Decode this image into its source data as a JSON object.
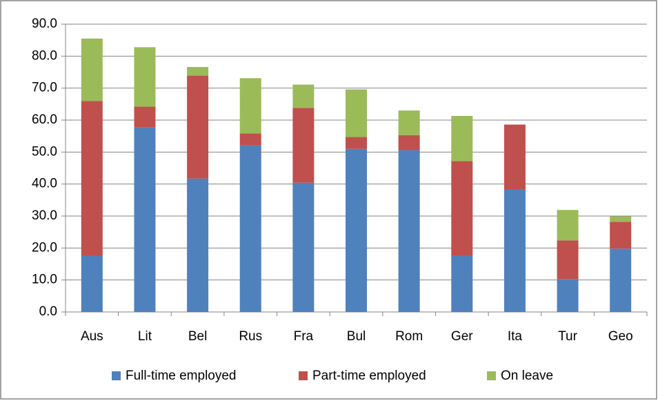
{
  "chart_data": {
    "type": "stacked_bar",
    "categories": [
      "Aus",
      "Lit",
      "Bel",
      "Rus",
      "Fra",
      "Bul",
      "Rom",
      "Ger",
      "Ita",
      "Tur",
      "Geo"
    ],
    "series": [
      {
        "name": "Full-time employed",
        "color": "#4f81bd",
        "values": [
          17.7,
          57.7,
          41.7,
          52.1,
          40.4,
          51.0,
          50.6,
          17.7,
          38.3,
          10.3,
          19.8
        ]
      },
      {
        "name": "Part-time employed",
        "color": "#c0504d",
        "values": [
          48.3,
          6.5,
          32.2,
          3.7,
          23.4,
          3.7,
          4.7,
          29.5,
          20.3,
          12.1,
          8.4
        ]
      },
      {
        "name": "On leave",
        "color": "#9bbb59",
        "values": [
          19.5,
          18.6,
          2.7,
          17.3,
          7.3,
          14.9,
          7.7,
          14.1,
          0,
          9.5,
          1.7
        ]
      }
    ],
    "ylim": [
      0,
      90
    ],
    "yticks": [
      {
        "value": 0,
        "label": "0.0"
      },
      {
        "value": 10,
        "label": "10.0"
      },
      {
        "value": 20,
        "label": "20.0"
      },
      {
        "value": 30,
        "label": "30.0"
      },
      {
        "value": 40,
        "label": "40.0"
      },
      {
        "value": 50,
        "label": "50.0"
      },
      {
        "value": 60,
        "label": "60.0"
      },
      {
        "value": 70,
        "label": "70.0"
      },
      {
        "value": 80,
        "label": "80.0"
      },
      {
        "value": 90,
        "label": "90.0"
      }
    ],
    "grid": true,
    "legend": "bottom"
  }
}
